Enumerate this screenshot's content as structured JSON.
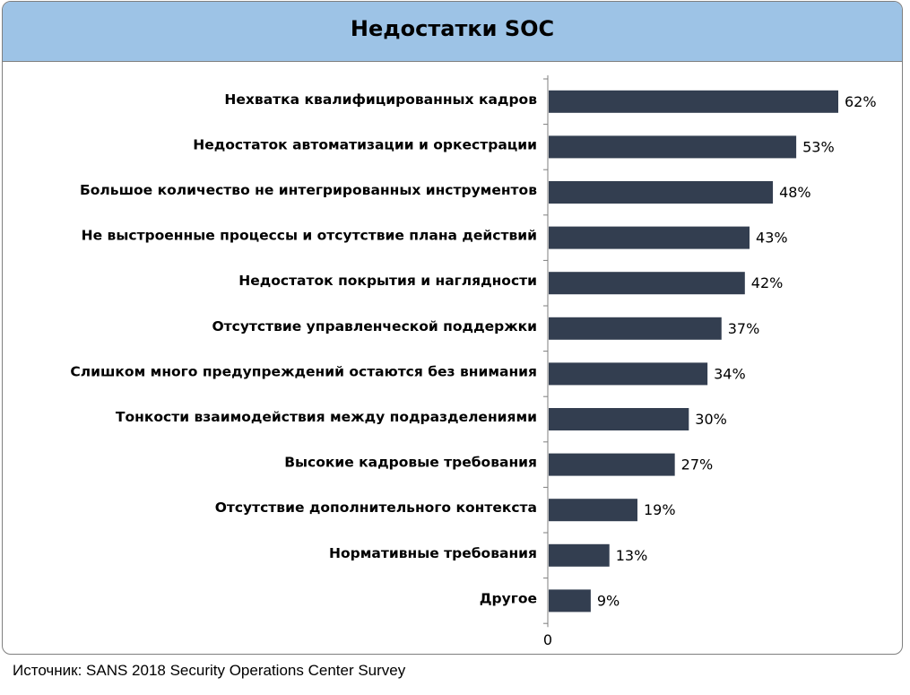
{
  "chart_data": {
    "type": "bar",
    "orientation": "horizontal",
    "title": "Недостатки SOC",
    "categories": [
      "Нехватка квалифицированных кадров",
      "Недостаток автоматизации и оркестрации",
      "Большое количество не интегрированных инструментов",
      "Не выстроенные процессы и отсутствие плана действий",
      "Недостаток покрытия и наглядности",
      "Отсутствие управленческой поддержки",
      "Слишком много предупреждений остаются без внимания",
      "Тонкости взаимодействия между подразделениями",
      "Высокие кадровые требования",
      "Отсутствие дополнительного контекста",
      "Нормативные  требования",
      "Другое"
    ],
    "values": [
      62,
      53,
      48,
      43,
      42,
      37,
      34,
      30,
      27,
      19,
      13,
      9
    ],
    "value_labels": [
      "62%",
      "53%",
      "48%",
      "43%",
      "42%",
      "37%",
      "34%",
      "30%",
      "27%",
      "19%",
      "13%",
      "9%"
    ],
    "x_tick_labels": [
      "0"
    ],
    "xlim": [
      0,
      62
    ],
    "grid": false,
    "legend": "none",
    "colors": {
      "bar": "#333e50",
      "title_band": "#9dc3e6",
      "axis": "#7f7f7f"
    }
  },
  "source": "Источник: SANS 2018 Security Operations Center Survey"
}
